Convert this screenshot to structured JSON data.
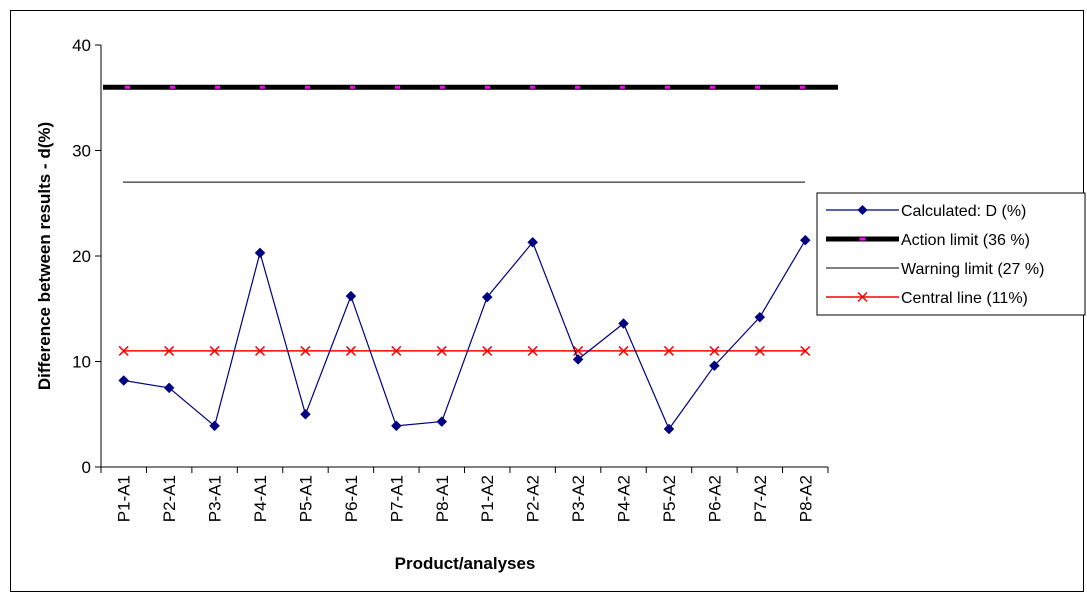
{
  "chart_data": {
    "type": "line",
    "xlabel": "Product/analyses",
    "ylabel": "Difference between results - d(%)",
    "ylim": [
      0,
      40
    ],
    "yticks": [
      0,
      10,
      20,
      30,
      40
    ],
    "grid": false,
    "legend_placement": "right",
    "categories": [
      "P1-A1",
      "P2-A1",
      "P3-A1",
      "P4-A1",
      "P5-A1",
      "P6-A1",
      "P7-A1",
      "P8-A1",
      "P1-A2",
      "P2-A2",
      "P3-A2",
      "P4-A2",
      "P5-A2",
      "P6-A2",
      "P7-A2",
      "P8-A2"
    ],
    "series": [
      {
        "name": "Calculated:  D (%)",
        "kind": "line-diamond",
        "color": "#000080",
        "values": [
          8.2,
          7.5,
          3.9,
          20.3,
          5.0,
          16.2,
          3.9,
          4.3,
          16.1,
          21.3,
          10.2,
          13.6,
          3.6,
          9.6,
          14.2,
          21.5
        ]
      },
      {
        "name": "Action limit (36 %)",
        "kind": "thick-dashed",
        "color": "#000000",
        "dash_color": "#ff00ff",
        "values": [
          36,
          36,
          36,
          36,
          36,
          36,
          36,
          36,
          36,
          36,
          36,
          36,
          36,
          36,
          36,
          36
        ]
      },
      {
        "name": "Warning limit (27 %)",
        "kind": "thin",
        "color": "#000000",
        "values": [
          27,
          27,
          27,
          27,
          27,
          27,
          27,
          27,
          27,
          27,
          27,
          27,
          27,
          27,
          27,
          27
        ]
      },
      {
        "name": "Central line (11%)",
        "kind": "line-x",
        "color": "#ff0000",
        "values": [
          11,
          11,
          11,
          11,
          11,
          11,
          11,
          11,
          11,
          11,
          11,
          11,
          11,
          11,
          11,
          11
        ]
      }
    ]
  }
}
